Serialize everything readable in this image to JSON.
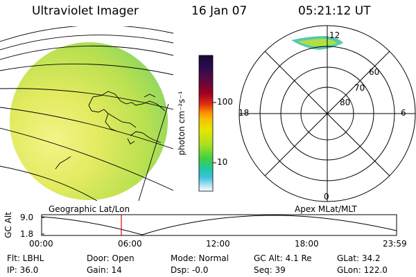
{
  "header": {
    "instrument": "Ultraviolet Imager",
    "date": "16 Jan 07",
    "time": "05:21:12 UT"
  },
  "colorbar": {
    "unit": "photon cm⁻²s⁻¹",
    "ticks": [
      "100",
      "10"
    ],
    "colors": [
      "#1a0b33",
      "#2a0a50",
      "#5a0a40",
      "#a00020",
      "#e03010",
      "#ff8a00",
      "#f5c000",
      "#e6e600",
      "#a8e020",
      "#40d040",
      "#20c8a8",
      "#40c0e0",
      "#a0e0f0",
      "#ffffff"
    ]
  },
  "polar": {
    "mlt_labels": {
      "top": "12",
      "left": "18",
      "right": "6",
      "bottom": "0"
    },
    "lat_labels": [
      "60",
      "70",
      "80"
    ]
  },
  "panel_labels": {
    "left": "Geographic Lat/Lon",
    "right": "Apex MLat/MLT"
  },
  "alt_plot": {
    "axis_label": "GC Alt",
    "y_ticks": [
      "9.0",
      "1.8"
    ],
    "x_ticks": [
      "00:00",
      "06:00",
      "12:00",
      "18:00",
      "23:59"
    ],
    "marker_color": "#e00000",
    "curve_color": "#000000"
  },
  "footer": {
    "row1": {
      "filter": "Flt: LBHL",
      "door": "Door: Open",
      "mode": "Mode: Normal",
      "gc_alt": "GC Alt: 4.1 Re",
      "glat": "GLat:  34.2"
    },
    "row2": {
      "ip": "IP: 36.0",
      "gain": "Gain: 14",
      "dsp": "Dsp:    -0.0",
      "seq": "Seq: 39",
      "glon": "GLon: 122.0"
    }
  }
}
